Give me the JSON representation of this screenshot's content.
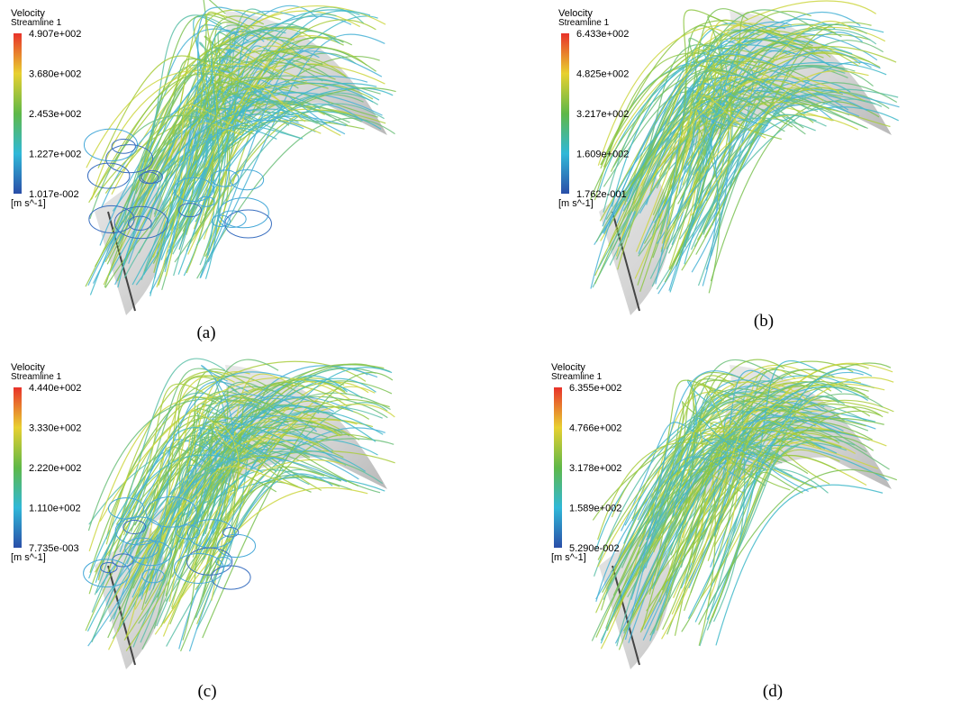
{
  "panels": [
    {
      "legend": {
        "title": "Velocity",
        "subtitle": "Streamline 1",
        "ticks": [
          "4.907e+002",
          "3.680e+002",
          "2.453e+002",
          "1.227e+002",
          "1.017e-002"
        ],
        "unit": "[m s^-1]"
      },
      "caption": "(a)"
    },
    {
      "legend": {
        "title": "Velocity",
        "subtitle": "Streamline 1",
        "ticks": [
          "6.433e+002",
          "4.825e+002",
          "3.217e+002",
          "1.609e+002",
          "1.762e-001"
        ],
        "unit": "[m s^-1]"
      },
      "caption": "(b)"
    },
    {
      "legend": {
        "title": "Velocity",
        "subtitle": "Streamline 1",
        "ticks": [
          "4.440e+002",
          "3.330e+002",
          "2.220e+002",
          "1.110e+002",
          "7.735e-003"
        ],
        "unit": "[m s^-1]"
      },
      "caption": "(c)"
    },
    {
      "legend": {
        "title": "Velocity",
        "subtitle": "Streamline 1",
        "ticks": [
          "6.355e+002",
          "4.766e+002",
          "3.178e+002",
          "1.589e+002",
          "5.290e-002"
        ],
        "unit": "[m s^-1]"
      },
      "caption": "(d)"
    }
  ]
}
